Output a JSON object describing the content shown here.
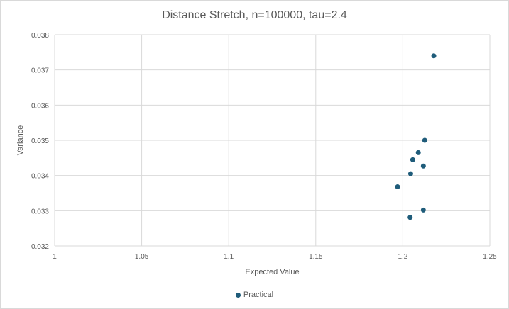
{
  "chart_data": {
    "type": "scatter",
    "title": "Distance Stretch, n=100000, tau=2.4",
    "xlabel": "Expected Value",
    "ylabel": "Variance",
    "xlim": [
      1,
      1.25
    ],
    "ylim": [
      0.032,
      0.038
    ],
    "xticks": [
      "1",
      "1.05",
      "1.1",
      "1.15",
      "1.2",
      "1.25"
    ],
    "yticks": [
      "0.032",
      "0.033",
      "0.034",
      "0.035",
      "0.036",
      "0.037",
      "0.038"
    ],
    "grid": true,
    "legend_position": "bottom",
    "series": [
      {
        "name": "Practical",
        "color": "#1f5c7a",
        "points": [
          {
            "x": 1.2178,
            "y": 0.0374
          },
          {
            "x": 1.2126,
            "y": 0.035
          },
          {
            "x": 1.2089,
            "y": 0.03465
          },
          {
            "x": 1.2057,
            "y": 0.03445
          },
          {
            "x": 1.2118,
            "y": 0.03427
          },
          {
            "x": 1.2045,
            "y": 0.03405
          },
          {
            "x": 1.197,
            "y": 0.03368
          },
          {
            "x": 1.2118,
            "y": 0.03302
          },
          {
            "x": 1.2042,
            "y": 0.03281
          }
        ]
      }
    ]
  }
}
